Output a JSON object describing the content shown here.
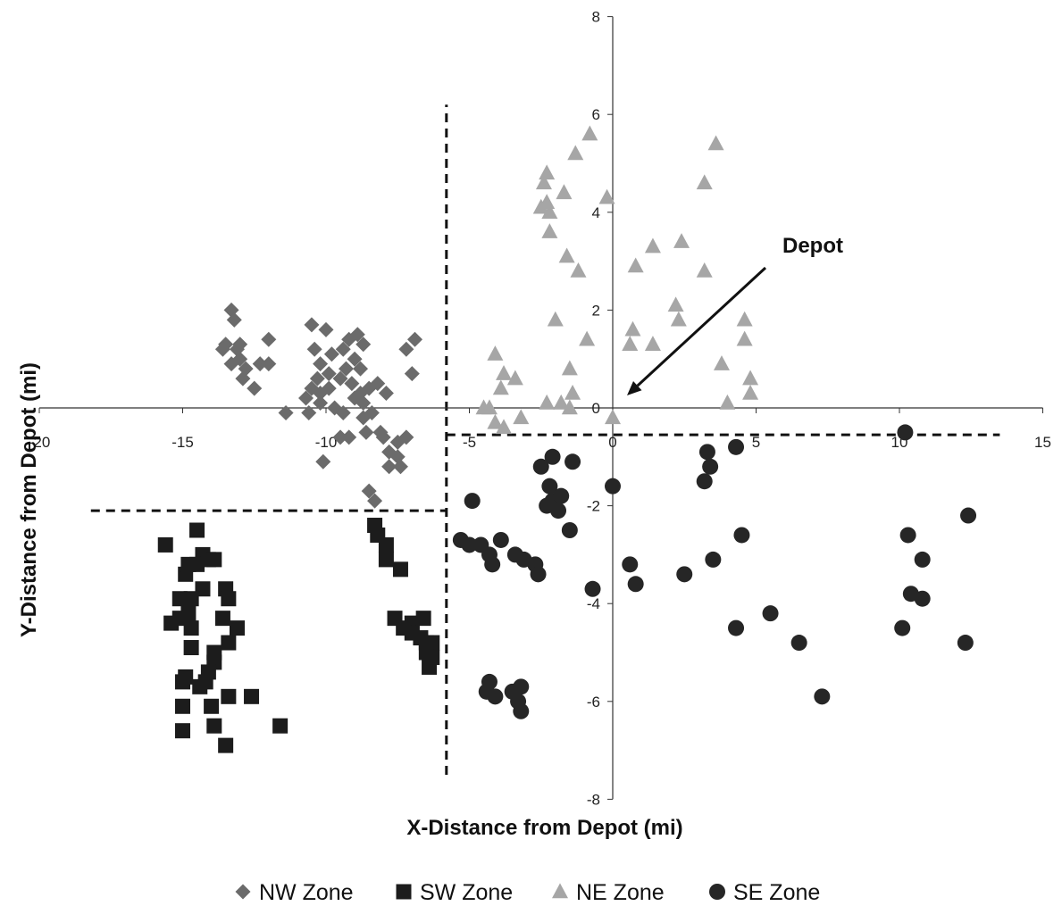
{
  "chart_data": {
    "type": "scatter",
    "title": "",
    "xlabel": "X-Distance from Depot (mi)",
    "ylabel": "Y-Distance from Depot (mi)",
    "xlim": [
      -20,
      15
    ],
    "ylim": [
      -8,
      8
    ],
    "x_ticks": [
      -20,
      -15,
      -10,
      -5,
      0,
      5,
      10,
      15
    ],
    "y_ticks": [
      -8,
      -6,
      -4,
      -2,
      0,
      2,
      4,
      6,
      8
    ],
    "legend_position": "bottom",
    "grid": false,
    "annotation": {
      "text": "Depot",
      "points_to": [
        0,
        0
      ]
    },
    "zone_boundaries": [
      {
        "type": "vertical",
        "x": -5.8,
        "y_range": [
          -7.5,
          6.2
        ]
      },
      {
        "type": "horizontal",
        "y": -0.55,
        "x_range": [
          -5.8,
          13.5
        ]
      },
      {
        "type": "horizontal",
        "y": -2.1,
        "x_range": [
          -18.2,
          -5.8
        ]
      }
    ],
    "series": [
      {
        "name": "NW Zone",
        "marker": "diamond",
        "color": "#6b6b6b",
        "points": [
          [
            -13.3,
            2.0
          ],
          [
            -13.2,
            1.8
          ],
          [
            -13.5,
            1.3
          ],
          [
            -13.1,
            1.2
          ],
          [
            -13.0,
            1.0
          ],
          [
            -13.3,
            0.9
          ],
          [
            -12.8,
            0.8
          ],
          [
            -12.3,
            0.9
          ],
          [
            -12.0,
            1.4
          ],
          [
            -12.0,
            0.9
          ],
          [
            -12.5,
            0.4
          ],
          [
            -12.9,
            0.6
          ],
          [
            -13.6,
            1.2
          ],
          [
            -13.0,
            1.3
          ],
          [
            -10.5,
            1.7
          ],
          [
            -10.0,
            1.6
          ],
          [
            -10.4,
            1.2
          ],
          [
            -10.2,
            0.9
          ],
          [
            -9.8,
            1.1
          ],
          [
            -9.2,
            1.4
          ],
          [
            -9.4,
            1.2
          ],
          [
            -8.9,
            1.5
          ],
          [
            -8.7,
            1.3
          ],
          [
            -9.0,
            1.0
          ],
          [
            -8.8,
            0.8
          ],
          [
            -9.3,
            0.8
          ],
          [
            -9.9,
            0.7
          ],
          [
            -10.3,
            0.6
          ],
          [
            -10.5,
            0.4
          ],
          [
            -10.2,
            0.3
          ],
          [
            -9.9,
            0.4
          ],
          [
            -9.5,
            0.6
          ],
          [
            -9.1,
            0.5
          ],
          [
            -8.8,
            0.3
          ],
          [
            -8.5,
            0.4
          ],
          [
            -8.2,
            0.5
          ],
          [
            -7.9,
            0.3
          ],
          [
            -7.0,
            0.7
          ],
          [
            -6.9,
            1.4
          ],
          [
            -7.2,
            1.2
          ],
          [
            -10.7,
            0.2
          ],
          [
            -10.2,
            0.1
          ],
          [
            -9.7,
            0.0
          ],
          [
            -9.4,
            -0.1
          ],
          [
            -9.0,
            0.2
          ],
          [
            -8.7,
            0.1
          ],
          [
            -8.4,
            -0.1
          ],
          [
            -8.7,
            -0.2
          ],
          [
            -10.6,
            -0.1
          ],
          [
            -11.4,
            -0.1
          ],
          [
            -8.1,
            -0.5
          ],
          [
            -8.0,
            -0.6
          ],
          [
            -7.8,
            -0.9
          ],
          [
            -7.5,
            -0.7
          ],
          [
            -7.2,
            -0.6
          ],
          [
            -7.5,
            -1.0
          ],
          [
            -7.8,
            -1.2
          ],
          [
            -7.4,
            -1.2
          ],
          [
            -9.2,
            -0.6
          ],
          [
            -9.5,
            -0.6
          ],
          [
            -10.1,
            -1.1
          ],
          [
            -8.6,
            -0.5
          ],
          [
            -8.5,
            -1.7
          ],
          [
            -8.3,
            -1.9
          ]
        ]
      },
      {
        "name": "SW Zone",
        "marker": "square",
        "color": "#1c1c1c",
        "points": [
          [
            -15.6,
            -2.8
          ],
          [
            -14.5,
            -2.5
          ],
          [
            -14.3,
            -3.0
          ],
          [
            -14.5,
            -3.2
          ],
          [
            -14.9,
            -3.4
          ],
          [
            -14.8,
            -3.2
          ],
          [
            -14.3,
            -3.7
          ],
          [
            -14.1,
            -3.1
          ],
          [
            -13.9,
            -3.1
          ],
          [
            -13.5,
            -3.7
          ],
          [
            -13.4,
            -3.9
          ],
          [
            -15.1,
            -3.9
          ],
          [
            -14.7,
            -3.9
          ],
          [
            -14.8,
            -4.2
          ],
          [
            -13.6,
            -4.3
          ],
          [
            -15.1,
            -4.3
          ],
          [
            -15.4,
            -4.4
          ],
          [
            -14.7,
            -4.5
          ],
          [
            -13.1,
            -4.5
          ],
          [
            -14.7,
            -4.9
          ],
          [
            -13.9,
            -5.0
          ],
          [
            -13.9,
            -5.2
          ],
          [
            -13.4,
            -4.8
          ],
          [
            -14.1,
            -5.4
          ],
          [
            -14.9,
            -5.5
          ],
          [
            -15.0,
            -5.6
          ],
          [
            -14.4,
            -5.7
          ],
          [
            -14.2,
            -5.6
          ],
          [
            -13.4,
            -5.9
          ],
          [
            -12.6,
            -5.9
          ],
          [
            -15.0,
            -6.1
          ],
          [
            -14.0,
            -6.1
          ],
          [
            -13.9,
            -6.5
          ],
          [
            -11.6,
            -6.5
          ],
          [
            -15.0,
            -6.6
          ],
          [
            -13.5,
            -6.9
          ],
          [
            -8.3,
            -2.4
          ],
          [
            -8.2,
            -2.6
          ],
          [
            -7.9,
            -2.8
          ],
          [
            -7.9,
            -3.1
          ],
          [
            -7.4,
            -3.3
          ],
          [
            -7.6,
            -4.3
          ],
          [
            -7.0,
            -4.4
          ],
          [
            -6.6,
            -4.3
          ],
          [
            -7.3,
            -4.5
          ],
          [
            -7.0,
            -4.6
          ],
          [
            -6.7,
            -4.7
          ],
          [
            -6.5,
            -4.8
          ],
          [
            -6.3,
            -4.8
          ],
          [
            -6.5,
            -5.0
          ],
          [
            -6.3,
            -5.1
          ],
          [
            -6.4,
            -5.3
          ]
        ]
      },
      {
        "name": "NE Zone",
        "marker": "triangle",
        "color": "#a6a6a6",
        "points": [
          [
            -4.1,
            1.1
          ],
          [
            -3.8,
            0.7
          ],
          [
            -3.4,
            0.6
          ],
          [
            -3.9,
            0.4
          ],
          [
            -4.3,
            0.0
          ],
          [
            -4.5,
            0.0
          ],
          [
            -4.1,
            -0.3
          ],
          [
            -3.8,
            -0.4
          ],
          [
            -3.2,
            -0.2
          ],
          [
            -2.3,
            4.8
          ],
          [
            -2.4,
            4.6
          ],
          [
            -2.3,
            4.2
          ],
          [
            -2.5,
            4.1
          ],
          [
            -2.2,
            4.0
          ],
          [
            -2.2,
            3.6
          ],
          [
            -1.7,
            4.4
          ],
          [
            -1.3,
            5.2
          ],
          [
            -0.8,
            5.6
          ],
          [
            -1.6,
            3.1
          ],
          [
            -1.2,
            2.8
          ],
          [
            -2.0,
            1.8
          ],
          [
            -0.9,
            1.4
          ],
          [
            -1.5,
            0.8
          ],
          [
            -1.4,
            0.3
          ],
          [
            -1.8,
            0.1
          ],
          [
            -1.5,
            0.0
          ],
          [
            -2.3,
            0.1
          ],
          [
            -0.2,
            4.3
          ],
          [
            0.8,
            2.9
          ],
          [
            1.4,
            3.3
          ],
          [
            2.4,
            3.4
          ],
          [
            3.2,
            4.6
          ],
          [
            3.6,
            5.4
          ],
          [
            0.7,
            1.6
          ],
          [
            0.6,
            1.3
          ],
          [
            1.4,
            1.3
          ],
          [
            2.2,
            2.1
          ],
          [
            2.3,
            1.8
          ],
          [
            3.2,
            2.8
          ],
          [
            3.8,
            0.9
          ],
          [
            4.6,
            1.8
          ],
          [
            4.6,
            1.4
          ],
          [
            4.8,
            0.6
          ],
          [
            4.8,
            0.3
          ],
          [
            4.0,
            0.1
          ],
          [
            0.0,
            -0.2
          ]
        ]
      },
      {
        "name": "SE Zone",
        "marker": "circle",
        "color": "#262626",
        "points": [
          [
            -2.5,
            -1.2
          ],
          [
            -2.1,
            -1.0
          ],
          [
            -1.4,
            -1.1
          ],
          [
            -2.2,
            -1.6
          ],
          [
            -2.1,
            -1.9
          ],
          [
            -2.3,
            -2.0
          ],
          [
            -1.9,
            -2.1
          ],
          [
            -1.8,
            -1.8
          ],
          [
            -1.5,
            -2.5
          ],
          [
            -4.9,
            -1.9
          ],
          [
            -5.3,
            -2.7
          ],
          [
            -5.0,
            -2.8
          ],
          [
            -4.6,
            -2.8
          ],
          [
            -4.3,
            -3.0
          ],
          [
            -4.2,
            -3.2
          ],
          [
            -3.9,
            -2.7
          ],
          [
            -3.4,
            -3.0
          ],
          [
            -3.1,
            -3.1
          ],
          [
            -2.7,
            -3.2
          ],
          [
            -2.6,
            -3.4
          ],
          [
            -0.7,
            -3.7
          ],
          [
            -4.4,
            -5.8
          ],
          [
            -4.3,
            -5.6
          ],
          [
            -4.1,
            -5.9
          ],
          [
            -3.5,
            -5.8
          ],
          [
            -3.3,
            -6.0
          ],
          [
            -3.2,
            -6.2
          ],
          [
            -3.2,
            -5.7
          ],
          [
            0.0,
            -1.6
          ],
          [
            0.6,
            -3.2
          ],
          [
            0.8,
            -3.6
          ],
          [
            2.5,
            -3.4
          ],
          [
            3.5,
            -3.1
          ],
          [
            3.3,
            -0.9
          ],
          [
            3.4,
            -1.2
          ],
          [
            3.2,
            -1.5
          ],
          [
            4.3,
            -0.8
          ],
          [
            4.5,
            -2.6
          ],
          [
            4.3,
            -4.5
          ],
          [
            5.5,
            -4.2
          ],
          [
            6.5,
            -4.8
          ],
          [
            7.3,
            -5.9
          ],
          [
            10.2,
            -0.5
          ],
          [
            10.3,
            -2.6
          ],
          [
            10.8,
            -3.1
          ],
          [
            10.4,
            -3.8
          ],
          [
            10.8,
            -3.9
          ],
          [
            10.1,
            -4.5
          ],
          [
            12.4,
            -2.2
          ],
          [
            12.3,
            -4.8
          ]
        ]
      }
    ]
  }
}
